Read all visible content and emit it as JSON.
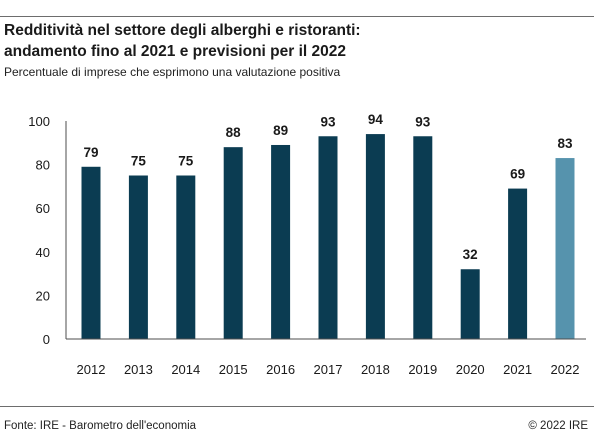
{
  "header": {
    "title_line1": "Redditività nel settore degli alberghi e ristoranti:",
    "title_line2": "andamento fino al 2021 e previsioni per il 2022",
    "subtitle": "Percentuale di imprese che esprimono una valutazione positiva"
  },
  "footer": {
    "source": "Fonte: IRE - Barometro dell'economia",
    "copyright": "© 2022 IRE"
  },
  "colors": {
    "bar": "#0b3c52",
    "forecast_bar": "#5693ad",
    "axis": "#4d4d4d",
    "rule": "#6d6d6d"
  },
  "chart_data": {
    "type": "bar",
    "title": "Redditività nel settore degli alberghi e ristoranti: andamento fino al 2021 e previsioni per il 2022",
    "subtitle": "Percentuale di imprese che esprimono una valutazione positiva",
    "categories": [
      "2012",
      "2013",
      "2014",
      "2015",
      "2016",
      "2017",
      "2018",
      "2019",
      "2020",
      "2021",
      "2022"
    ],
    "values": [
      79,
      75,
      75,
      88,
      89,
      93,
      94,
      93,
      32,
      69,
      83
    ],
    "forecast_category": "2022",
    "ylim": [
      0,
      100
    ],
    "yticks": [
      0,
      20,
      40,
      60,
      80,
      100
    ],
    "xlabel": "",
    "ylabel": "",
    "grid": false,
    "legend": "none",
    "data_labels": true
  }
}
